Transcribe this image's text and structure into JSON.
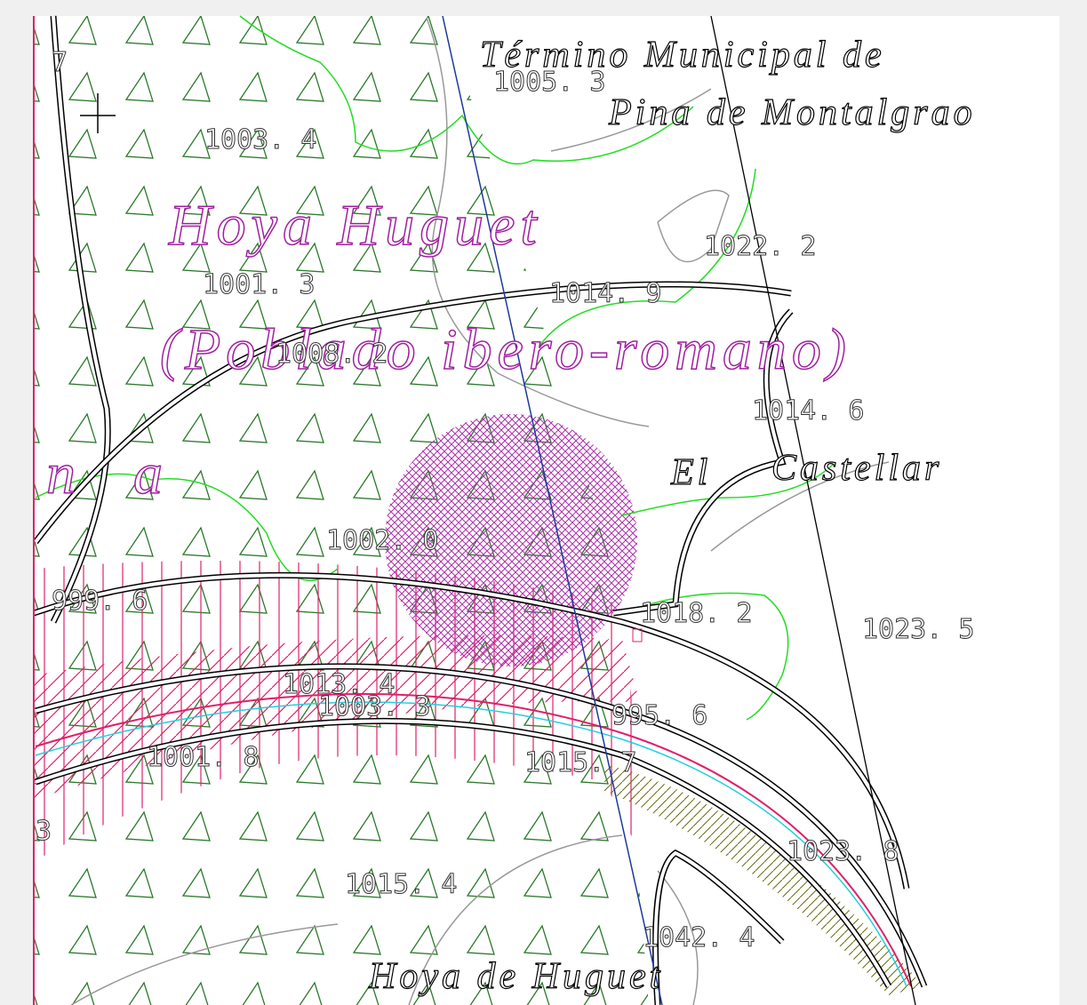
{
  "map": {
    "titles": [
      "Término Municipal de",
      "Pina de Montalgrao",
      "Hoya Huguet",
      "(Poblado ibero-romano)",
      "El",
      "Castellar",
      "Hoya de Huguet",
      "n",
      "a",
      "7",
      "3"
    ],
    "elevations": [
      "1005. 3",
      "1003. 4",
      "1022. 2",
      "1001. 3",
      "1014. 9",
      "1008. 2",
      "1014. 6",
      "1002. 0",
      "999. 6",
      "1018. 2",
      "1023. 5",
      "1013. 4",
      "1003. 3",
      "995. 6",
      "1001. 8",
      "1015. 7",
      "1023. 8",
      "1015. 4",
      "1042. 4"
    ]
  }
}
